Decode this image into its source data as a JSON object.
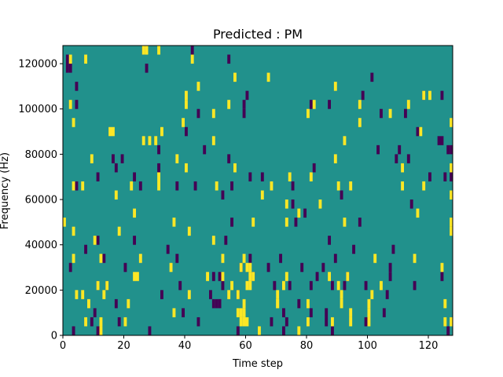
{
  "chart_data": {
    "type": "heatmap",
    "title": "Predicted : PM",
    "xlabel": "Time step",
    "ylabel": "Frequency (Hz)",
    "xlim": [
      0,
      128
    ],
    "ylim": [
      0,
      128000
    ],
    "xticks": [
      0,
      20,
      40,
      60,
      80,
      100,
      120
    ],
    "xtick_labels": [
      "0",
      "20",
      "40",
      "60",
      "80",
      "100",
      "120"
    ],
    "yticks": [
      0,
      20000,
      40000,
      60000,
      80000,
      100000,
      120000
    ],
    "ytick_labels": [
      "0",
      "20000",
      "40000",
      "60000",
      "80000",
      "100000",
      "120000"
    ],
    "grid": false,
    "legend": "none",
    "colors": {
      "background_value": "#21918c",
      "high_value": "#fde725",
      "low_value": "#440154"
    },
    "cell_width_steps": 1,
    "cell_height_hz": 4000,
    "high_cells": [
      [
        0,
        48000
      ],
      [
        2,
        100000
      ],
      [
        2,
        120000
      ],
      [
        3,
        92000
      ],
      [
        3,
        64000
      ],
      [
        3,
        44000
      ],
      [
        3,
        32000
      ],
      [
        4,
        16000
      ],
      [
        6,
        64000
      ],
      [
        6,
        16000
      ],
      [
        7,
        120000
      ],
      [
        7,
        4000
      ],
      [
        8,
        12000
      ],
      [
        9,
        76000
      ],
      [
        10,
        40000
      ],
      [
        11,
        20000
      ],
      [
        12,
        32000
      ],
      [
        12,
        4000
      ],
      [
        12,
        0
      ],
      [
        13,
        16000
      ],
      [
        14,
        20000
      ],
      [
        15,
        88000
      ],
      [
        16,
        88000
      ],
      [
        17,
        60000
      ],
      [
        18,
        44000
      ],
      [
        20,
        4000
      ],
      [
        21,
        12000
      ],
      [
        22,
        64000
      ],
      [
        23,
        52000
      ],
      [
        23,
        24000
      ],
      [
        24,
        24000
      ],
      [
        25,
        32000
      ],
      [
        26,
        84000
      ],
      [
        26,
        124000
      ],
      [
        27,
        124000
      ],
      [
        28,
        84000
      ],
      [
        30,
        84000
      ],
      [
        31,
        68000
      ],
      [
        31,
        64000
      ],
      [
        31,
        124000
      ],
      [
        32,
        88000
      ],
      [
        35,
        28000
      ],
      [
        36,
        48000
      ],
      [
        36,
        8000
      ],
      [
        37,
        76000
      ],
      [
        39,
        92000
      ],
      [
        40,
        72000
      ],
      [
        40,
        100000
      ],
      [
        40,
        104000
      ],
      [
        41,
        16000
      ],
      [
        41,
        44000
      ],
      [
        42,
        120000
      ],
      [
        44,
        108000
      ],
      [
        47,
        24000
      ],
      [
        49,
        96000
      ],
      [
        49,
        84000
      ],
      [
        49,
        40000
      ],
      [
        50,
        64000
      ],
      [
        52,
        32000
      ],
      [
        52,
        24000
      ],
      [
        54,
        16000
      ],
      [
        54,
        100000
      ],
      [
        55,
        20000
      ],
      [
        56,
        112000
      ],
      [
        56,
        72000
      ],
      [
        57,
        8000
      ],
      [
        57,
        16000
      ],
      [
        58,
        4000
      ],
      [
        58,
        8000
      ],
      [
        58,
        28000
      ],
      [
        59,
        32000
      ],
      [
        59,
        4000
      ],
      [
        59,
        8000
      ],
      [
        59,
        12000
      ],
      [
        60,
        20000
      ],
      [
        60,
        4000
      ],
      [
        60,
        28000
      ],
      [
        61,
        28000
      ],
      [
        61,
        20000
      ],
      [
        61,
        24000
      ],
      [
        62,
        24000
      ],
      [
        62,
        48000
      ],
      [
        64,
        0
      ],
      [
        65,
        60000
      ],
      [
        67,
        112000
      ],
      [
        68,
        64000
      ],
      [
        70,
        12000
      ],
      [
        70,
        16000
      ],
      [
        70,
        12000
      ],
      [
        72,
        20000
      ],
      [
        73,
        56000
      ],
      [
        73,
        24000
      ],
      [
        73,
        48000
      ],
      [
        74,
        68000
      ],
      [
        77,
        52000
      ],
      [
        77,
        0
      ],
      [
        80,
        96000
      ],
      [
        80,
        12000
      ],
      [
        80,
        4000
      ],
      [
        81,
        68000
      ],
      [
        82,
        100000
      ],
      [
        84,
        56000
      ],
      [
        87,
        24000
      ],
      [
        88,
        4000
      ],
      [
        89,
        108000
      ],
      [
        89,
        76000
      ],
      [
        90,
        64000
      ],
      [
        90,
        20000
      ],
      [
        91,
        12000
      ],
      [
        91,
        16000
      ],
      [
        92,
        84000
      ],
      [
        92,
        48000
      ],
      [
        93,
        24000
      ],
      [
        94,
        64000
      ],
      [
        94,
        4000
      ],
      [
        94,
        8000
      ],
      [
        97,
        92000
      ],
      [
        97,
        100000
      ],
      [
        100,
        4000
      ],
      [
        100,
        8000
      ],
      [
        100,
        12000
      ],
      [
        101,
        16000
      ],
      [
        102,
        32000
      ],
      [
        104,
        20000
      ],
      [
        107,
        96000
      ],
      [
        111,
        72000
      ],
      [
        111,
        64000
      ],
      [
        113,
        100000
      ],
      [
        115,
        32000
      ],
      [
        116,
        52000
      ],
      [
        117,
        88000
      ],
      [
        118,
        104000
      ],
      [
        118,
        64000
      ],
      [
        120,
        104000
      ],
      [
        124,
        28000
      ],
      [
        125,
        4000
      ],
      [
        125,
        12000
      ],
      [
        127,
        4000
      ],
      [
        127,
        72000
      ],
      [
        127,
        60000
      ],
      [
        127,
        92000
      ],
      [
        127,
        48000
      ],
      [
        127,
        44000
      ]
    ],
    "low_cells": [
      [
        1,
        120000
      ],
      [
        1,
        116000
      ],
      [
        2,
        116000
      ],
      [
        2,
        28000
      ],
      [
        3,
        0
      ],
      [
        4,
        108000
      ],
      [
        4,
        100000
      ],
      [
        4,
        64000
      ],
      [
        7,
        36000
      ],
      [
        9,
        4000
      ],
      [
        10,
        8000
      ],
      [
        11,
        68000
      ],
      [
        11,
        40000
      ],
      [
        11,
        20000
      ],
      [
        11,
        0
      ],
      [
        13,
        32000
      ],
      [
        14,
        20000
      ],
      [
        16,
        76000
      ],
      [
        17,
        72000
      ],
      [
        17,
        12000
      ],
      [
        18,
        4000
      ],
      [
        19,
        76000
      ],
      [
        20,
        28000
      ],
      [
        23,
        68000
      ],
      [
        23,
        40000
      ],
      [
        25,
        64000
      ],
      [
        26,
        124000
      ],
      [
        27,
        116000
      ],
      [
        28,
        0
      ],
      [
        31,
        80000
      ],
      [
        31,
        72000
      ],
      [
        32,
        16000
      ],
      [
        34,
        36000
      ],
      [
        37,
        64000
      ],
      [
        37,
        32000
      ],
      [
        38,
        20000
      ],
      [
        39,
        8000
      ],
      [
        40,
        88000
      ],
      [
        42,
        124000
      ],
      [
        43,
        64000
      ],
      [
        44,
        96000
      ],
      [
        44,
        4000
      ],
      [
        46,
        80000
      ],
      [
        48,
        16000
      ],
      [
        49,
        12000
      ],
      [
        49,
        24000
      ],
      [
        50,
        12000
      ],
      [
        51,
        24000
      ],
      [
        51,
        12000
      ],
      [
        52,
        20000
      ],
      [
        52,
        60000
      ],
      [
        53,
        40000
      ],
      [
        54,
        76000
      ],
      [
        54,
        120000
      ],
      [
        55,
        64000
      ],
      [
        55,
        48000
      ],
      [
        57,
        16000
      ],
      [
        57,
        0
      ],
      [
        58,
        28000
      ],
      [
        59,
        96000
      ],
      [
        59,
        100000
      ],
      [
        60,
        104000
      ],
      [
        61,
        68000
      ],
      [
        61,
        32000
      ],
      [
        62,
        24000
      ],
      [
        65,
        68000
      ],
      [
        67,
        28000
      ],
      [
        68,
        4000
      ],
      [
        69,
        20000
      ],
      [
        71,
        32000
      ],
      [
        72,
        0
      ],
      [
        72,
        8000
      ],
      [
        73,
        4000
      ],
      [
        74,
        20000
      ],
      [
        75,
        64000
      ],
      [
        75,
        56000
      ],
      [
        76,
        48000
      ],
      [
        77,
        12000
      ],
      [
        78,
        28000
      ],
      [
        79,
        52000
      ],
      [
        80,
        4000
      ],
      [
        81,
        100000
      ],
      [
        81,
        8000
      ],
      [
        81,
        20000
      ],
      [
        82,
        72000
      ],
      [
        83,
        24000
      ],
      [
        85,
        28000
      ],
      [
        86,
        8000
      ],
      [
        86,
        4000
      ],
      [
        87,
        100000
      ],
      [
        87,
        40000
      ],
      [
        88,
        0
      ],
      [
        88,
        20000
      ],
      [
        89,
        32000
      ],
      [
        91,
        60000
      ],
      [
        92,
        20000
      ],
      [
        93,
        24000
      ],
      [
        95,
        36000
      ],
      [
        97,
        48000
      ],
      [
        98,
        104000
      ],
      [
        99,
        4000
      ],
      [
        99,
        20000
      ],
      [
        101,
        112000
      ],
      [
        103,
        80000
      ],
      [
        104,
        96000
      ],
      [
        105,
        8000
      ],
      [
        106,
        16000
      ],
      [
        107,
        24000
      ],
      [
        107,
        28000
      ],
      [
        108,
        36000
      ],
      [
        109,
        76000
      ],
      [
        110,
        80000
      ],
      [
        112,
        96000
      ],
      [
        113,
        76000
      ],
      [
        114,
        56000
      ],
      [
        115,
        20000
      ],
      [
        116,
        88000
      ],
      [
        118,
        104000
      ],
      [
        120,
        68000
      ],
      [
        123,
        84000
      ],
      [
        124,
        84000
      ],
      [
        124,
        24000
      ],
      [
        124,
        104000
      ],
      [
        125,
        68000
      ],
      [
        126,
        80000
      ],
      [
        126,
        0
      ],
      [
        127,
        80000
      ],
      [
        127,
        68000
      ]
    ]
  }
}
